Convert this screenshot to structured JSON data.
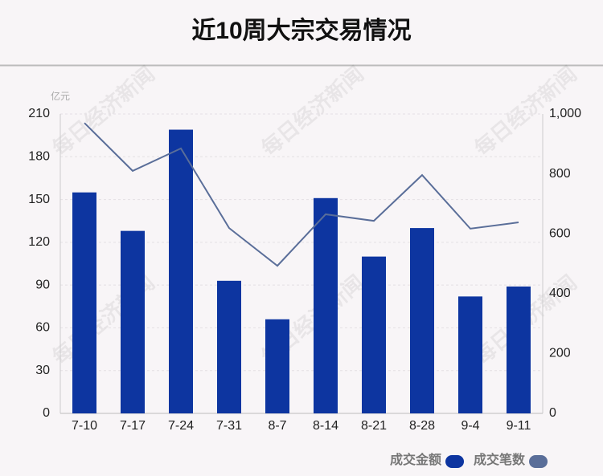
{
  "chart_data": {
    "type": "bar_line",
    "title": "近10周大宗交易情况",
    "y_unit": "亿元",
    "watermark": "每日经济新闻",
    "categories": [
      "7-10",
      "7-17",
      "7-24",
      "7-31",
      "8-7",
      "8-14",
      "8-21",
      "8-28",
      "9-4",
      "9-11"
    ],
    "series": [
      {
        "name": "成交金额",
        "type": "bar",
        "color": "#0d35a0",
        "values": [
          155,
          128,
          199,
          93,
          66,
          151,
          110,
          130,
          82,
          89
        ]
      },
      {
        "name": "成交笔数",
        "type": "line",
        "axis": "y2",
        "color": "#5a6e99",
        "values": [
          970,
          810,
          885,
          619,
          493,
          665,
          643,
          796,
          617,
          638
        ]
      }
    ],
    "ylim": [
      0,
      210
    ],
    "yticks": [
      0,
      30,
      60,
      90,
      120,
      150,
      180,
      210
    ],
    "y2lim": [
      0,
      1000
    ],
    "y2ticks": [
      0,
      200,
      400,
      600,
      800,
      {
        "value": 1000,
        "label": "1,000"
      }
    ],
    "grid": true
  }
}
